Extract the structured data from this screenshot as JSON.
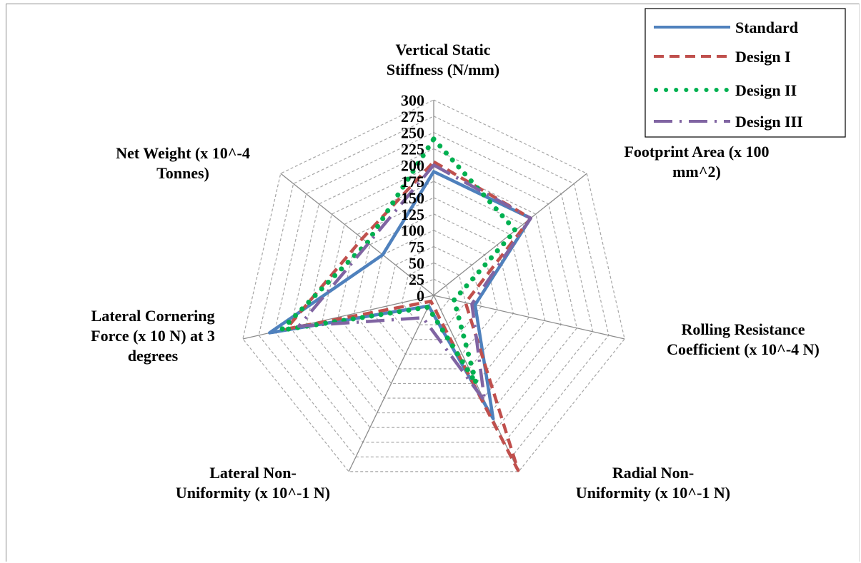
{
  "chart_data": {
    "type": "radar",
    "axes": [
      [
        "Vertical Static",
        "Stiffness (N/mm)"
      ],
      [
        "Footprint Area (x 100",
        "mm^2)"
      ],
      [
        "Rolling Resistance",
        "Coefficient (x 10^-4 N)"
      ],
      [
        "Radial Non-",
        "Uniformity (x 10^-1 N)"
      ],
      [
        "Lateral Non-",
        "Uniformity (x 10^-1 N)"
      ],
      [
        "Lateral Cornering",
        "Force (x 10 N) at 3",
        "degrees"
      ],
      [
        "Net Weight (x 10^-4",
        "Tonnes)"
      ]
    ],
    "ticks": [
      "0",
      "25",
      "50",
      "75",
      "100",
      "125",
      "150",
      "175",
      "200",
      "225",
      "250",
      "275",
      "300"
    ],
    "rmax": 300,
    "series": [
      {
        "name": "Standard",
        "color": "#4f81bd",
        "style": "solid",
        "values": [
          190,
          190,
          65,
          210,
          18,
          258,
          100
        ]
      },
      {
        "name": "Design I",
        "color": "#c0504d",
        "style": "dashed",
        "values": [
          205,
          190,
          50,
          298,
          10,
          232,
          140
        ]
      },
      {
        "name": "Design II",
        "color": "#00b050",
        "style": "dotted",
        "values": [
          240,
          160,
          32,
          150,
          20,
          240,
          130
        ]
      },
      {
        "name": "Design III",
        "color": "#8064a2",
        "style": "long-dash-dot",
        "values": [
          200,
          190,
          60,
          180,
          38,
          212,
          128
        ]
      }
    ],
    "legend": "top-right",
    "grid": true
  }
}
